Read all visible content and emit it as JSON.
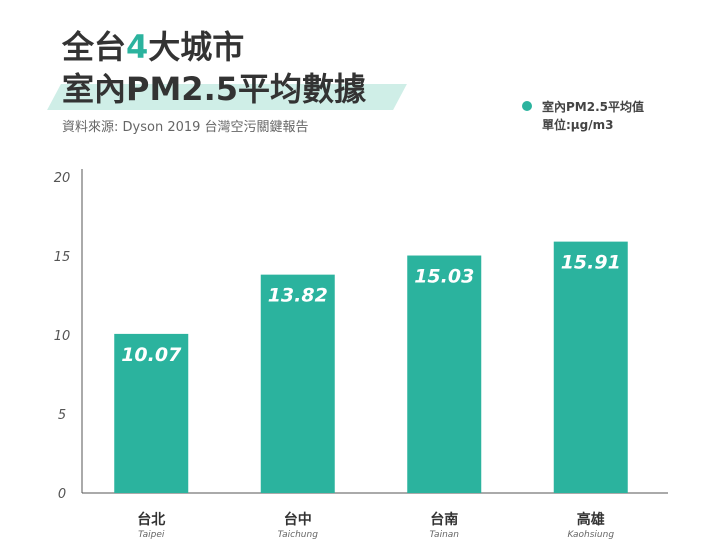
{
  "header": {
    "title_line1_pre": "全台",
    "title_line1_accent": "4",
    "title_line1_post": "大城市",
    "title_line2": "室內PM2.5平均數據",
    "source": "資料來源: Dyson 2019 台灣空污關鍵報告"
  },
  "legend": {
    "label": "室內PM2.5平均值",
    "unit": "單位:μg/m3"
  },
  "colors": {
    "bar": "#2bb39e",
    "axis": "#555555"
  },
  "chart_data": {
    "type": "bar",
    "title": "全台4大城市 室內PM2.5平均數據",
    "categories": [
      "台北",
      "台中",
      "台南",
      "高雄"
    ],
    "categories_en": [
      "Taipei",
      "Taichung",
      "Tainan",
      "Kaohsiung"
    ],
    "series": [
      {
        "name": "室內PM2.5平均值",
        "values": [
          10.07,
          13.82,
          15.03,
          15.91
        ]
      }
    ],
    "value_labels": [
      "10.07",
      "13.82",
      "15.03",
      "15.91"
    ],
    "ylim": [
      0,
      20
    ],
    "yticks": [
      0,
      5,
      10,
      15,
      20
    ],
    "ylabel": "",
    "xlabel": "",
    "legend_position": "top-right",
    "grid": false
  }
}
